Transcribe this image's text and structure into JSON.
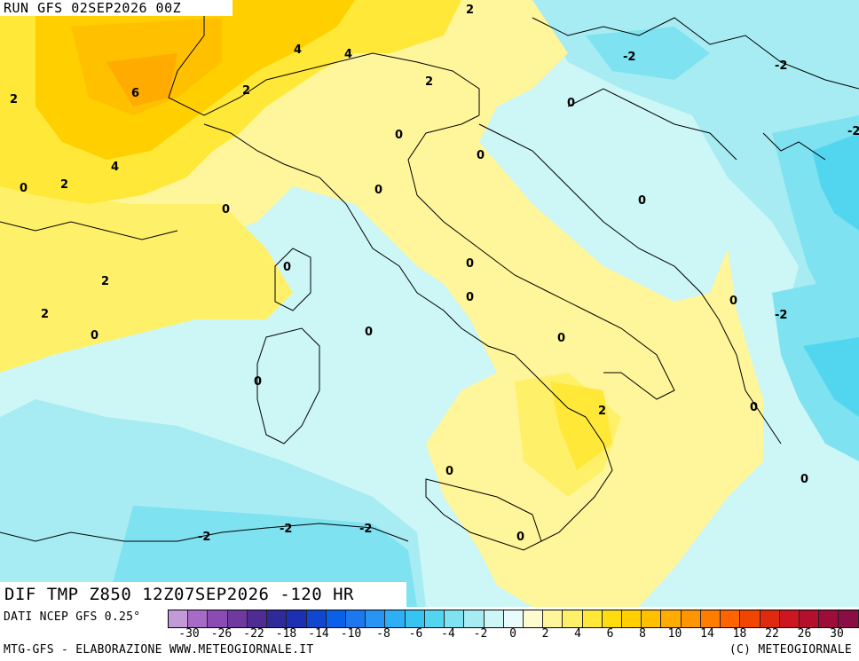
{
  "header": {
    "run_label": "RUN GFS 02SEP2026 00Z"
  },
  "field": {
    "label": "DIF TMP Z850 12Z07SEP2026 -120 HR"
  },
  "footer": {
    "source": "DATI NCEP GFS 0.25°",
    "credit_left": "MTG-GFS - ELABORAZIONE WWW.METEOGIORNALE.IT",
    "credit_right": "(C) METEOGIORNALE"
  },
  "colorbar": {
    "colors": [
      "#c39ad8",
      "#a76ac6",
      "#8a4cb2",
      "#6e3aa0",
      "#4f2b94",
      "#2f2a9a",
      "#1d30b4",
      "#1046d0",
      "#0a60e6",
      "#1d78f0",
      "#2894f4",
      "#2eaef4",
      "#38c4f0",
      "#52d6f0",
      "#7ee2f0",
      "#a6ecf2",
      "#cdf6f6",
      "#eafbfb",
      "#fffbd0",
      "#fff59a",
      "#fff06a",
      "#ffe838",
      "#ffdc10",
      "#ffcf00",
      "#ffc000",
      "#ffab00",
      "#ff9600",
      "#ff7e00",
      "#ff6400",
      "#f04600",
      "#e02a10",
      "#cc1620",
      "#b4102e",
      "#9e0c3a",
      "#8a0e44"
    ],
    "tick_labels": [
      "-30",
      "-26",
      "-22",
      "-18",
      "-14",
      "-10",
      "-8",
      "-6",
      "-4",
      "-2",
      "0",
      "2",
      "4",
      "6",
      "8",
      "10",
      "14",
      "18",
      "22",
      "26",
      "30"
    ]
  },
  "contour_labels": [
    {
      "text": "2"
    },
    {
      "text": "4"
    },
    {
      "text": "4"
    },
    {
      "text": "6"
    },
    {
      "text": "2"
    },
    {
      "text": "2"
    },
    {
      "text": "2"
    },
    {
      "text": "4"
    },
    {
      "text": "0"
    },
    {
      "text": "2"
    },
    {
      "text": "0"
    },
    {
      "text": "0"
    },
    {
      "text": "0"
    },
    {
      "text": "0"
    },
    {
      "text": "2"
    },
    {
      "text": "2"
    },
    {
      "text": "0"
    },
    {
      "text": "0"
    },
    {
      "text": "0"
    },
    {
      "text": "0"
    },
    {
      "text": "0"
    },
    {
      "text": "-2"
    },
    {
      "text": "-2"
    },
    {
      "text": "0"
    },
    {
      "text": "-2"
    },
    {
      "text": "0"
    },
    {
      "text": "0"
    },
    {
      "text": "0"
    },
    {
      "text": "0"
    },
    {
      "text": "-2"
    },
    {
      "text": "0"
    },
    {
      "text": "0"
    },
    {
      "text": "2"
    },
    {
      "text": "0"
    },
    {
      "text": "0"
    },
    {
      "text": "-2"
    },
    {
      "text": "-2"
    },
    {
      "text": "-2"
    },
    {
      "text": "0"
    },
    {
      "text": "-2"
    }
  ]
}
